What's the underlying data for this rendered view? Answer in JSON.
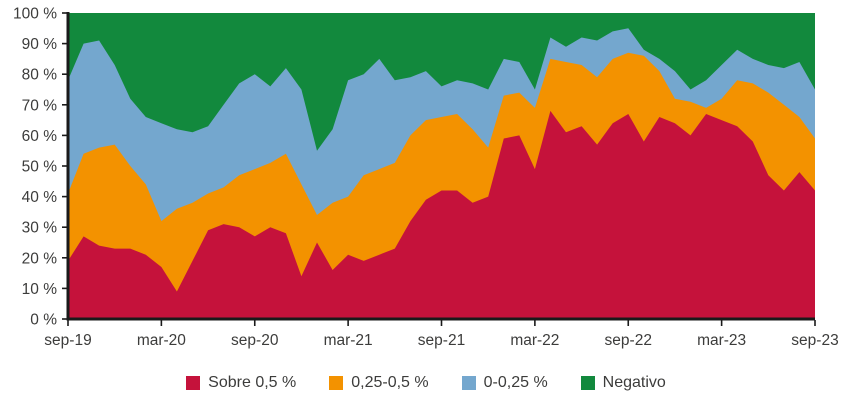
{
  "chart_data": {
    "type": "area",
    "stacked": true,
    "percent_stacked": true,
    "title": "",
    "xlabel": "",
    "ylabel": "",
    "unit": "%",
    "ylim": [
      0,
      100
    ],
    "y_ticks": [
      0,
      10,
      20,
      30,
      40,
      50,
      60,
      70,
      80,
      90,
      100
    ],
    "y_tick_suffix": " %",
    "x_tick_step": 6,
    "x_tick_labels": [
      "sep-19",
      "mar-20",
      "sep-20",
      "mar-21",
      "sep-21",
      "mar-22",
      "sep-22",
      "mar-23",
      "sep-23"
    ],
    "grid": false,
    "legend_position": "bottom",
    "axis_color": "#1a1a1a",
    "text_color": "#3c3c3b",
    "x": [
      "sep-19",
      "oct-19",
      "nov-19",
      "dic-19",
      "ene-20",
      "feb-20",
      "mar-20",
      "abr-20",
      "may-20",
      "jun-20",
      "jul-20",
      "ago-20",
      "sep-20",
      "oct-20",
      "nov-20",
      "dic-20",
      "ene-21",
      "feb-21",
      "mar-21",
      "abr-21",
      "may-21",
      "jun-21",
      "jul-21",
      "ago-21",
      "sep-21",
      "oct-21",
      "nov-21",
      "dic-21",
      "ene-22",
      "feb-22",
      "mar-22",
      "abr-22",
      "may-22",
      "jun-22",
      "jul-22",
      "ago-22",
      "sep-22",
      "oct-22",
      "nov-22",
      "dic-22",
      "ene-23",
      "feb-23",
      "mar-23",
      "abr-23",
      "may-23",
      "jun-23",
      "jul-23",
      "ago-23",
      "sep-23"
    ],
    "series": [
      {
        "name": "Sobre 0,5 %",
        "color": "#c5123b",
        "values": [
          19,
          27,
          24,
          23,
          23,
          21,
          17,
          9,
          19,
          29,
          31,
          30,
          27,
          30,
          28,
          14,
          25,
          16,
          21,
          19,
          21,
          23,
          32,
          39,
          42,
          42,
          38,
          40,
          59,
          60,
          49,
          68,
          61,
          63,
          57,
          64,
          67,
          58,
          66,
          64,
          60,
          67,
          65,
          63,
          58,
          47,
          42,
          48,
          42
        ]
      },
      {
        "name": "0,25-0,5 %",
        "color": "#f39200",
        "values": [
          22,
          27,
          32,
          34,
          27,
          23,
          15,
          27,
          19,
          12,
          12,
          17,
          22,
          21,
          26,
          30,
          9,
          22,
          19,
          28,
          28,
          28,
          28,
          26,
          24,
          25,
          24,
          16,
          14,
          14,
          20,
          17,
          23,
          20,
          22,
          21,
          20,
          28,
          15,
          8,
          11,
          2,
          7,
          15,
          19,
          27,
          28,
          18,
          17
        ]
      },
      {
        "name": "0-0,25 %",
        "color": "#74a7ce",
        "values": [
          37,
          36,
          35,
          26,
          22,
          22,
          32,
          26,
          23,
          22,
          27,
          30,
          31,
          25,
          28,
          31,
          21,
          24,
          38,
          33,
          36,
          27,
          19,
          16,
          10,
          11,
          15,
          19,
          12,
          10,
          6,
          7,
          5,
          9,
          12,
          9,
          8,
          2,
          4,
          9,
          4,
          9,
          11,
          10,
          8,
          9,
          12,
          18,
          16
        ]
      },
      {
        "name": "Negativo",
        "color": "#12893d",
        "values": [
          22,
          10,
          9,
          17,
          28,
          34,
          36,
          38,
          39,
          37,
          30,
          23,
          20,
          24,
          18,
          25,
          45,
          38,
          22,
          20,
          15,
          22,
          21,
          19,
          24,
          22,
          23,
          25,
          15,
          16,
          25,
          8,
          11,
          8,
          9,
          6,
          5,
          12,
          15,
          19,
          25,
          22,
          17,
          12,
          15,
          17,
          18,
          16,
          25
        ]
      }
    ]
  }
}
